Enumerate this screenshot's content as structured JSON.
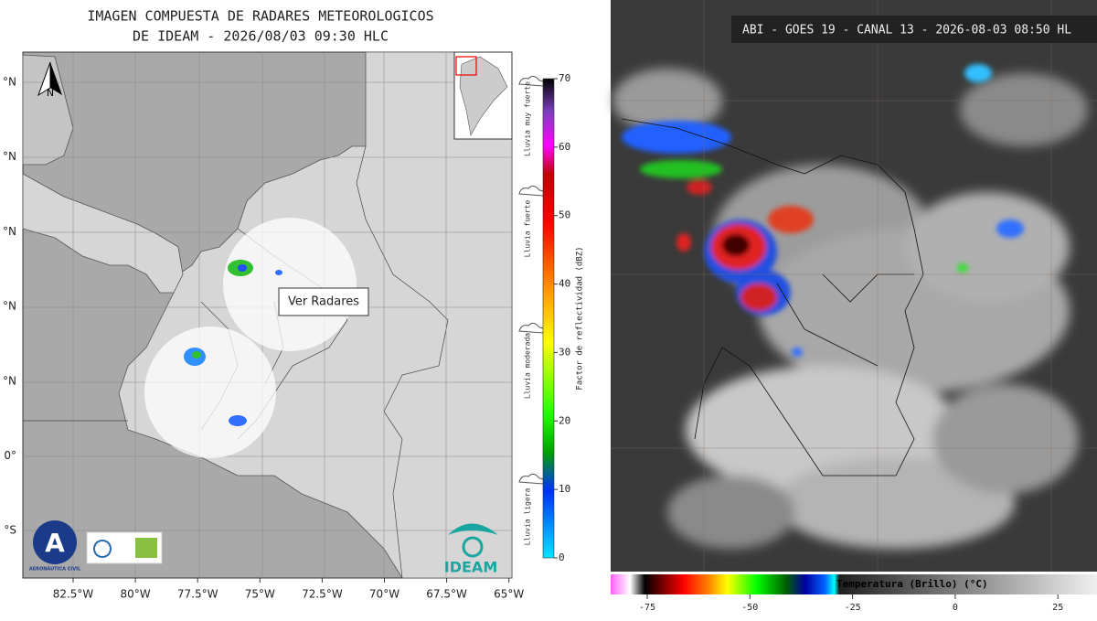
{
  "radar_panel": {
    "title": [
      "IMAGEN COMPUESTA DE RADARES METEOROLOGICOS",
      "DE IDEAM - 2026/08/03 09:30 HLC"
    ],
    "north": "N",
    "lat_labels": [
      "°N",
      "°N",
      "°N",
      "°N",
      "°N",
      "0°",
      "°S"
    ],
    "lon_labels": [
      "82.5°W",
      "80°W",
      "77.5°W",
      "75°W",
      "72.5°W",
      "70°W",
      "67.5°W",
      "65°W"
    ],
    "button": "Ver Radares",
    "intensity_labels": [
      "Lluvia muy fuerte",
      "Lluvia fuerte",
      "Lluvia moderada",
      "Lluvia ligera"
    ],
    "colorbar": {
      "label": "Factor de reflectividad (dBZ)",
      "ticks": [
        0,
        10,
        20,
        30,
        40,
        50,
        60,
        70
      ]
    },
    "logos": {
      "aerocivil": "AERONÁUTICA CIVIL",
      "ideam": "IDEAM"
    }
  },
  "satellite_panel": {
    "header": "ABI - GOES 19 - CANAL 13 - 2026-08-03 08:50 HL",
    "colorbar": {
      "label": "Temperatura (Brillo) (°C)",
      "ticks": [
        -75,
        -50,
        -25,
        0,
        25
      ]
    }
  }
}
